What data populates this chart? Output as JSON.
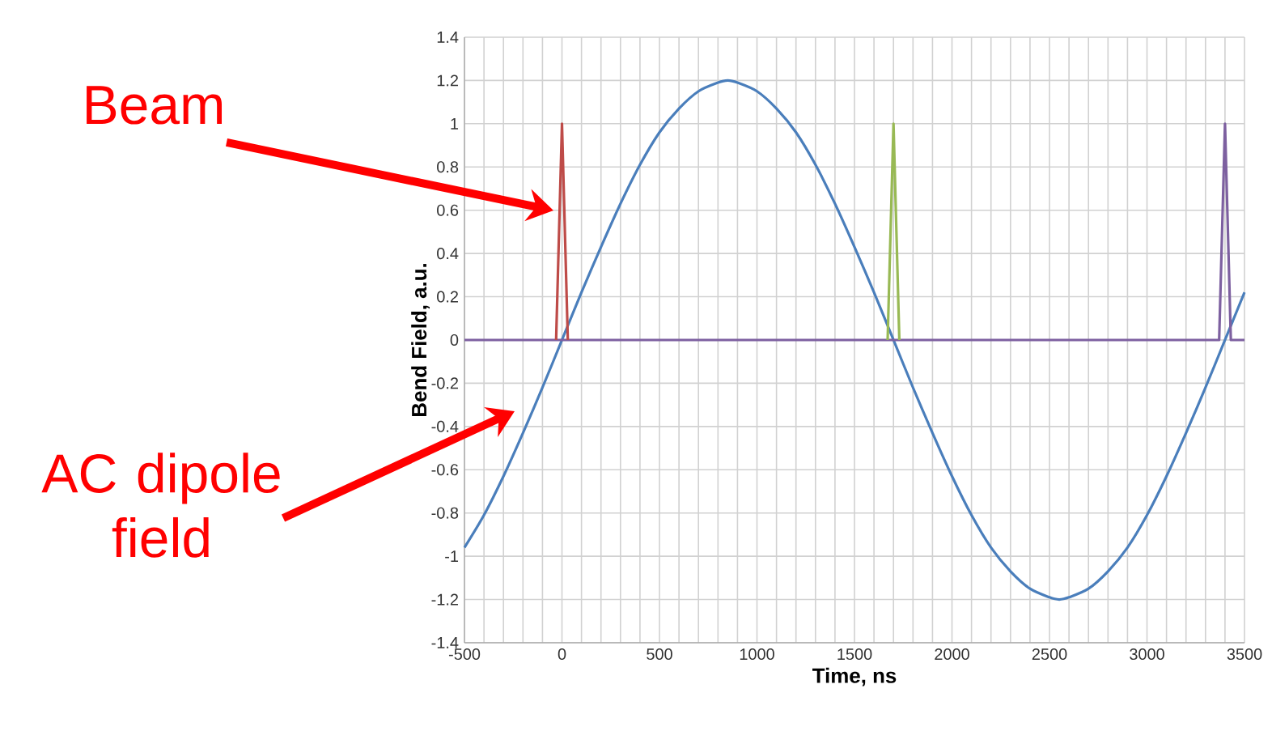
{
  "chart_data": {
    "type": "line",
    "xlabel": "Time, ns",
    "ylabel": "Bend Field, a.u.",
    "xlim": [
      -500,
      3500
    ],
    "xticks": [
      -500,
      {
        "value": -400,
        "label": null
      },
      {
        "value": -300,
        "label": null
      },
      {
        "value": -200,
        "label": null
      },
      {
        "value": -100,
        "label": null
      },
      0,
      {
        "value": 100,
        "label": null
      },
      {
        "value": 200,
        "label": null
      },
      {
        "value": 300,
        "label": null
      },
      {
        "value": 400,
        "label": null
      },
      500,
      {
        "value": 600,
        "label": null
      },
      {
        "value": 700,
        "label": null
      },
      {
        "value": 800,
        "label": null
      },
      {
        "value": 900,
        "label": null
      },
      1000,
      {
        "value": 1100,
        "label": null
      },
      {
        "value": 1200,
        "label": null
      },
      {
        "value": 1300,
        "label": null
      },
      {
        "value": 1400,
        "label": null
      },
      1500,
      {
        "value": 1600,
        "label": null
      },
      {
        "value": 1700,
        "label": null
      },
      {
        "value": 1800,
        "label": null
      },
      {
        "value": 1900,
        "label": null
      },
      2000,
      {
        "value": 2100,
        "label": null
      },
      {
        "value": 2200,
        "label": null
      },
      {
        "value": 2300,
        "label": null
      },
      {
        "value": 2400,
        "label": null
      },
      2500,
      {
        "value": 2600,
        "label": null
      },
      {
        "value": 2700,
        "label": null
      },
      {
        "value": 2800,
        "label": null
      },
      {
        "value": 2900,
        "label": null
      },
      3000,
      {
        "value": 3100,
        "label": null
      },
      {
        "value": 3200,
        "label": null
      },
      {
        "value": 3300,
        "label": null
      },
      {
        "value": 3400,
        "label": null
      },
      3500
    ],
    "ylim": [
      -1.4,
      1.4
    ],
    "yticks": [
      -1.4,
      -1.2,
      -1,
      -0.8,
      -0.6,
      -0.4,
      -0.2,
      0,
      0.2,
      0.4,
      0.6,
      0.8,
      1,
      1.2,
      1.4
    ],
    "grid": true,
    "marker": "none",
    "line_style": "solid",
    "series": [
      {
        "color": "#4a7ebb",
        "x": [
          -500,
          -400,
          -300,
          -200,
          -100,
          0,
          100,
          200,
          300,
          400,
          500,
          600,
          700,
          800,
          850,
          900,
          1000,
          1100,
          1200,
          1300,
          1400,
          1500,
          1600,
          1700,
          1800,
          1900,
          2000,
          2100,
          2200,
          2300,
          2400,
          2500,
          2550,
          2600,
          2700,
          2800,
          2900,
          3000,
          3100,
          3200,
          3300,
          3400,
          3500
        ],
        "values": [
          -0.96,
          -0.81,
          -0.63,
          -0.43,
          -0.22,
          0,
          0.22,
          0.43,
          0.63,
          0.81,
          0.96,
          1.07,
          1.15,
          1.19,
          1.2,
          1.19,
          1.15,
          1.07,
          0.96,
          0.81,
          0.63,
          0.43,
          0.22,
          0,
          -0.22,
          -0.43,
          -0.63,
          -0.81,
          -0.96,
          -1.07,
          -1.15,
          -1.19,
          -1.2,
          -1.19,
          -1.15,
          -1.07,
          -0.96,
          -0.81,
          -0.63,
          -0.43,
          -0.22,
          0,
          0.22
        ]
      },
      {
        "color": "#7d60a0",
        "x": [
          -500,
          3370,
          3400,
          3430,
          3500
        ],
        "values": [
          0,
          0,
          1,
          0,
          0
        ]
      },
      {
        "color": "#be4b48",
        "x": [
          -30,
          0,
          30
        ],
        "values": [
          0,
          1,
          0
        ]
      },
      {
        "color": "#98b954",
        "x": [
          1670,
          1700,
          1730
        ],
        "values": [
          0,
          1,
          0
        ]
      }
    ],
    "annotations": [
      "Beam",
      "AC dipole field"
    ]
  }
}
